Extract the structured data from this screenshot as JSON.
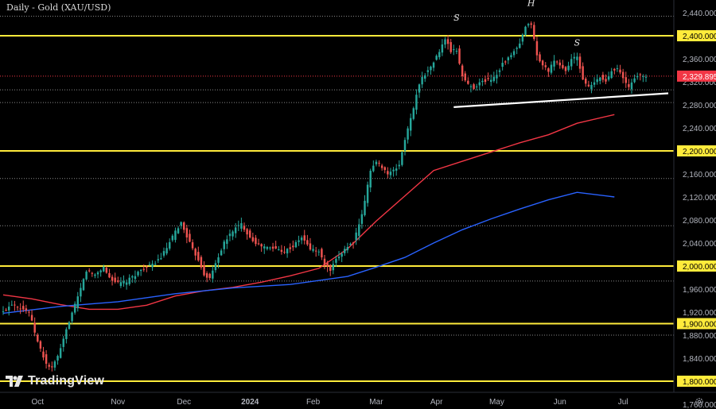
{
  "chart_data": {
    "type": "candlestick",
    "title": "Daily - Gold (XAU/USD)",
    "ylim": [
      1740,
      2460
    ],
    "grid": false,
    "x_tick_labels": [
      "Oct",
      "Nov",
      "Dec",
      "2024",
      "Feb",
      "Mar",
      "Apr",
      "May",
      "Jun",
      "Jul"
    ],
    "y_tick_labels": [
      "2,440.000",
      "2,400.000",
      "2,360.000",
      "2,320.000",
      "2,280.000",
      "2,240.000",
      "2,200.000",
      "2,160.000",
      "2,120.000",
      "2,080.000",
      "2,040.000",
      "2,000.000",
      "1,960.000",
      "1,920.000",
      "1,900.000",
      "1,880.000",
      "1,840.000",
      "1,800.000",
      "1,760.000"
    ],
    "y_tick_values": [
      2440,
      2400,
      2360,
      2320,
      2280,
      2240,
      2200,
      2160,
      2120,
      2080,
      2040,
      2000,
      1960,
      1920,
      1900,
      1880,
      1840,
      1800,
      1760
    ],
    "highlighted_levels": [
      2400,
      2200,
      2000,
      1900,
      1800
    ],
    "highlighted_labels": [
      "2,400.000",
      "2,200.000",
      "2,000.000",
      "1,900.000",
      "1,800.000"
    ],
    "dotted_levels": [
      2434,
      2306,
      2284,
      2152,
      2070,
      1974,
      1880
    ],
    "last_price": 2329.895,
    "last_price_label": "2,329.895",
    "colors": {
      "up": "#26a69a",
      "down": "#ef5350",
      "level": "#ffeb3b",
      "ma_red": "#f23645",
      "ma_blue": "#2962ff",
      "neckline": "#ffffff",
      "last_price": "#f23645",
      "background": "#000000"
    },
    "pattern_labels": [
      {
        "text": "S",
        "date_index": 158,
        "value": 2426
      },
      {
        "text": "H",
        "date_index": 184,
        "value": 2452
      },
      {
        "text": "S",
        "date_index": 200,
        "value": 2383
      }
    ],
    "neckline": {
      "start_index": 157,
      "start_value": 2276,
      "end_index": 224,
      "end_value": 2300
    },
    "moving_averages": [
      {
        "color": "red",
        "points": [
          [
            0,
            1950
          ],
          [
            10,
            1943
          ],
          [
            20,
            1933
          ],
          [
            30,
            1925
          ],
          [
            40,
            1925
          ],
          [
            50,
            1932
          ],
          [
            60,
            1948
          ],
          [
            70,
            1957
          ],
          [
            80,
            1963
          ],
          [
            90,
            1972
          ],
          [
            100,
            1983
          ],
          [
            110,
            1996
          ],
          [
            120,
            2030
          ],
          [
            130,
            2078
          ],
          [
            140,
            2122
          ],
          [
            150,
            2166
          ],
          [
            160,
            2182
          ],
          [
            170,
            2198
          ],
          [
            180,
            2214
          ],
          [
            190,
            2228
          ],
          [
            200,
            2248
          ],
          [
            213,
            2263
          ]
        ]
      },
      {
        "color": "blue",
        "points": [
          [
            0,
            1918
          ],
          [
            20,
            1930
          ],
          [
            40,
            1938
          ],
          [
            60,
            1952
          ],
          [
            80,
            1962
          ],
          [
            100,
            1968
          ],
          [
            120,
            1982
          ],
          [
            130,
            1998
          ],
          [
            140,
            2015
          ],
          [
            150,
            2040
          ],
          [
            160,
            2063
          ],
          [
            170,
            2082
          ],
          [
            180,
            2099
          ],
          [
            190,
            2115
          ],
          [
            200,
            2128
          ],
          [
            213,
            2120
          ]
        ]
      }
    ],
    "series": [
      {
        "name": "XAU/USD",
        "anchors": [
          [
            0,
            1920
          ],
          [
            3,
            1935
          ],
          [
            6,
            1928
          ],
          [
            9,
            1920
          ],
          [
            12,
            1868
          ],
          [
            15,
            1830
          ],
          [
            17,
            1822
          ],
          [
            20,
            1855
          ],
          [
            23,
            1905
          ],
          [
            26,
            1945
          ],
          [
            29,
            1992
          ],
          [
            32,
            1985
          ],
          [
            35,
            1998
          ],
          [
            37,
            1980
          ],
          [
            40,
            1970
          ],
          [
            43,
            1973
          ],
          [
            46,
            1985
          ],
          [
            49,
            1997
          ],
          [
            52,
            2002
          ],
          [
            55,
            2015
          ],
          [
            58,
            2040
          ],
          [
            60,
            2060
          ],
          [
            62,
            2075
          ],
          [
            64,
            2052
          ],
          [
            66,
            2028
          ],
          [
            68,
            2012
          ],
          [
            70,
            1986
          ],
          [
            72,
            1978
          ],
          [
            74,
            2005
          ],
          [
            77,
            2040
          ],
          [
            80,
            2062
          ],
          [
            83,
            2073
          ],
          [
            86,
            2050
          ],
          [
            89,
            2036
          ],
          [
            92,
            2032
          ],
          [
            95,
            2030
          ],
          [
            98,
            2026
          ],
          [
            101,
            2034
          ],
          [
            104,
            2050
          ],
          [
            107,
            2030
          ],
          [
            110,
            2025
          ],
          [
            112,
            2002
          ],
          [
            114,
            1992
          ],
          [
            116,
            2010
          ],
          [
            119,
            2030
          ],
          [
            122,
            2042
          ],
          [
            124,
            2070
          ],
          [
            126,
            2112
          ],
          [
            128,
            2168
          ],
          [
            130,
            2180
          ],
          [
            132,
            2173
          ],
          [
            134,
            2160
          ],
          [
            136,
            2165
          ],
          [
            138,
            2176
          ],
          [
            140,
            2220
          ],
          [
            142,
            2255
          ],
          [
            144,
            2298
          ],
          [
            146,
            2330
          ],
          [
            148,
            2338
          ],
          [
            150,
            2355
          ],
          [
            152,
            2372
          ],
          [
            154,
            2395
          ],
          [
            156,
            2373
          ],
          [
            158,
            2375
          ],
          [
            160,
            2330
          ],
          [
            162,
            2315
          ],
          [
            164,
            2310
          ],
          [
            166,
            2318
          ],
          [
            168,
            2322
          ],
          [
            170,
            2325
          ],
          [
            172,
            2333
          ],
          [
            174,
            2352
          ],
          [
            176,
            2360
          ],
          [
            178,
            2372
          ],
          [
            180,
            2385
          ],
          [
            182,
            2415
          ],
          [
            184,
            2421
          ],
          [
            186,
            2365
          ],
          [
            188,
            2348
          ],
          [
            190,
            2340
          ],
          [
            192,
            2355
          ],
          [
            194,
            2350
          ],
          [
            196,
            2338
          ],
          [
            198,
            2360
          ],
          [
            200,
            2362
          ],
          [
            202,
            2325
          ],
          [
            204,
            2310
          ],
          [
            206,
            2318
          ],
          [
            208,
            2328
          ],
          [
            210,
            2320
          ],
          [
            212,
            2340
          ],
          [
            214,
            2345
          ],
          [
            216,
            2325
          ],
          [
            218,
            2310
          ],
          [
            220,
            2328
          ],
          [
            222,
            2330
          ],
          [
            224,
            2329
          ]
        ]
      }
    ]
  },
  "brand": {
    "name": "TradingView",
    "icon": "tradingview-logo-icon"
  },
  "settings": {
    "icon": "gear-icon"
  }
}
